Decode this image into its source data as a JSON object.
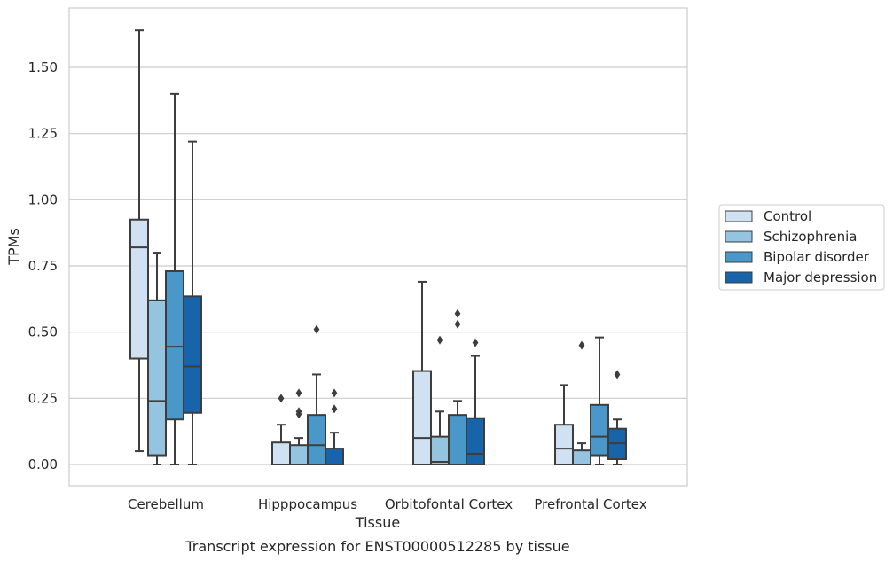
{
  "caption": "Transcript expression for ENST00000512285 by tissue",
  "chart_data": {
    "type": "box",
    "xlabel": "Tissue",
    "ylabel": "TPMs",
    "ylim": [
      -0.065,
      1.73
    ],
    "yticks": [
      0.0,
      0.25,
      0.5,
      0.75,
      1.0,
      1.25,
      1.5
    ],
    "ytick_labels": [
      "0.00",
      "0.25",
      "0.50",
      "0.75",
      "1.00",
      "1.25",
      "1.50"
    ],
    "grid": "horizontal",
    "legend_position": "right",
    "categories": [
      "Cerebellum",
      "Hipppocampus",
      "Orbitofontal Cortex",
      "Prefrontal Cortex"
    ],
    "series": [
      {
        "name": "Control",
        "color": "#d0e1f2",
        "boxes": [
          {
            "whislo": 0.05,
            "q1": 0.4,
            "med": 0.82,
            "q3": 0.925,
            "whishi": 1.64,
            "fliers": []
          },
          {
            "whislo": 0.0,
            "q1": 0.0,
            "med": 0.0,
            "q3": 0.083,
            "whishi": 0.15,
            "fliers": [
              0.25
            ]
          },
          {
            "whislo": 0.0,
            "q1": 0.0,
            "med": 0.1,
            "q3": 0.353,
            "whishi": 0.69,
            "fliers": []
          },
          {
            "whislo": 0.0,
            "q1": 0.0,
            "med": 0.06,
            "q3": 0.15,
            "whishi": 0.3,
            "fliers": []
          }
        ]
      },
      {
        "name": "Schizophrenia",
        "color": "#94c4df",
        "boxes": [
          {
            "whislo": 0.0,
            "q1": 0.035,
            "med": 0.24,
            "q3": 0.62,
            "whishi": 0.8,
            "fliers": []
          },
          {
            "whislo": 0.0,
            "q1": 0.0,
            "med": 0.0,
            "q3": 0.073,
            "whishi": 0.1,
            "fliers": [
              0.19,
              0.2,
              0.27
            ]
          },
          {
            "whislo": 0.0,
            "q1": 0.0,
            "med": 0.01,
            "q3": 0.105,
            "whishi": 0.2,
            "fliers": [
              0.47
            ]
          },
          {
            "whislo": 0.0,
            "q1": 0.0,
            "med": 0.0,
            "q3": 0.053,
            "whishi": 0.08,
            "fliers": [
              0.45
            ]
          }
        ]
      },
      {
        "name": "Bipolar disorder",
        "color": "#4a98c9",
        "boxes": [
          {
            "whislo": 0.0,
            "q1": 0.17,
            "med": 0.445,
            "q3": 0.73,
            "whishi": 1.4,
            "fliers": []
          },
          {
            "whislo": 0.0,
            "q1": 0.0,
            "med": 0.073,
            "q3": 0.187,
            "whishi": 0.34,
            "fliers": [
              0.51
            ]
          },
          {
            "whislo": 0.0,
            "q1": 0.0,
            "med": 0.0,
            "q3": 0.187,
            "whishi": 0.24,
            "fliers": [
              0.53,
              0.57
            ]
          },
          {
            "whislo": 0.0,
            "q1": 0.035,
            "med": 0.105,
            "q3": 0.225,
            "whishi": 0.48,
            "fliers": []
          }
        ]
      },
      {
        "name": "Major depression",
        "color": "#1764ab",
        "boxes": [
          {
            "whislo": 0.0,
            "q1": 0.195,
            "med": 0.37,
            "q3": 0.635,
            "whishi": 1.22,
            "fliers": []
          },
          {
            "whislo": 0.0,
            "q1": 0.0,
            "med": 0.0,
            "q3": 0.06,
            "whishi": 0.12,
            "fliers": [
              0.21,
              0.27
            ]
          },
          {
            "whislo": 0.0,
            "q1": 0.0,
            "med": 0.04,
            "q3": 0.175,
            "whishi": 0.41,
            "fliers": [
              0.46
            ]
          },
          {
            "whislo": 0.0,
            "q1": 0.02,
            "med": 0.08,
            "q3": 0.135,
            "whishi": 0.17,
            "fliers": [
              0.34
            ]
          }
        ]
      }
    ]
  }
}
